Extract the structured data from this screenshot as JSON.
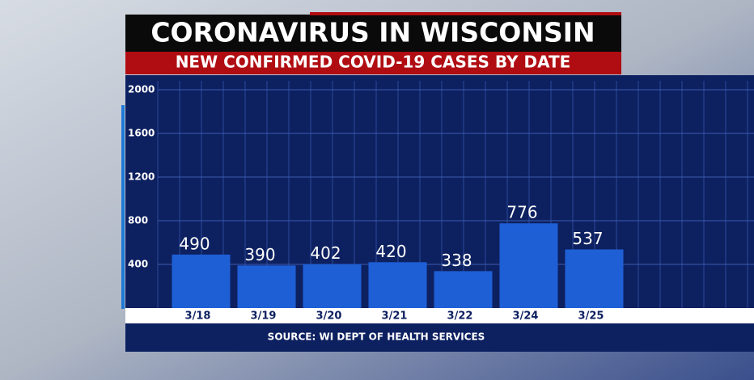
{
  "chart_data": {
    "type": "bar",
    "title": "CORONAVIRUS IN WISCONSIN",
    "subtitle": "NEW CONFIRMED COVID-19 CASES BY DATE",
    "categories": [
      "3/18",
      "3/19",
      "3/20",
      "3/21",
      "3/22",
      "3/24",
      "3/25"
    ],
    "values": [
      490,
      390,
      402,
      420,
      338,
      776,
      537
    ],
    "color": "#1e5fd6",
    "ylim": [
      0,
      2000
    ],
    "yticks": [
      400,
      800,
      1200,
      1600,
      2000
    ],
    "grid": true,
    "source": "SOURCE: WI DEPT OF HEALTH SERVICES"
  }
}
